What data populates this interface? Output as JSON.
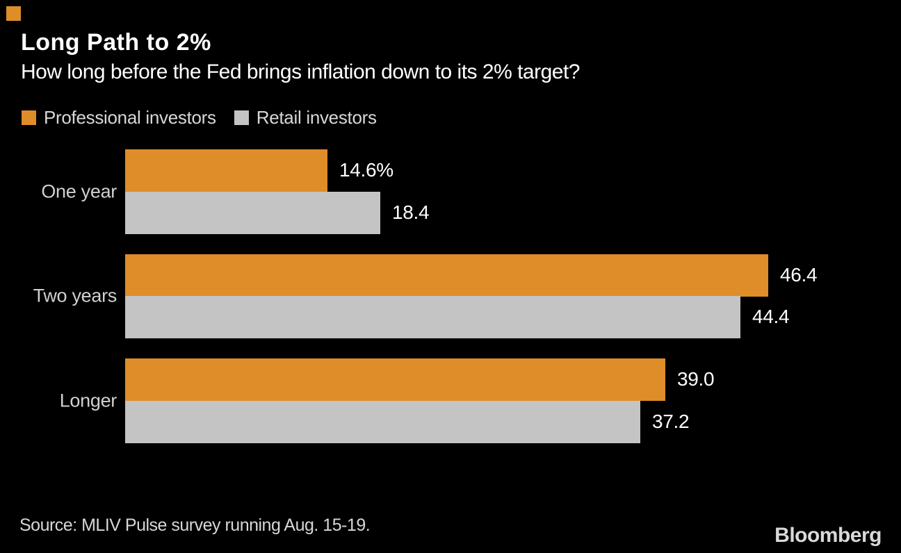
{
  "brand": {
    "corner_mark_color": "#DF8D28",
    "logo_text": "Bloomberg"
  },
  "header": {
    "title": "Long Path to 2%",
    "subtitle": "How long before the Fed brings inflation down to its 2% target?"
  },
  "legend": [
    {
      "label": "Professional investors",
      "color": "#DF8D28"
    },
    {
      "label": "Retail investors",
      "color": "#C4C4C4"
    }
  ],
  "chart_data": {
    "type": "bar",
    "orientation": "horizontal",
    "title": "Long Path to 2%",
    "subtitle": "How long before the Fed brings inflation down to its 2% target?",
    "categories": [
      "One year",
      "Two years",
      "Longer"
    ],
    "series": [
      {
        "name": "Professional investors",
        "color": "#DF8D28",
        "values": [
          14.6,
          46.4,
          39.0
        ],
        "value_labels": [
          "14.6%",
          "46.4",
          "39.0"
        ]
      },
      {
        "name": "Retail investors",
        "color": "#C4C4C4",
        "values": [
          18.4,
          44.4,
          37.2
        ],
        "value_labels": [
          "18.4",
          "44.4",
          "37.2"
        ]
      }
    ],
    "xlim": [
      0,
      50
    ],
    "grid": false,
    "legend_position": "top",
    "value_labels_position": "right-of-bar",
    "background_color": "#000000"
  },
  "footer": {
    "source": "Source: MLIV Pulse survey running Aug. 15-19."
  }
}
